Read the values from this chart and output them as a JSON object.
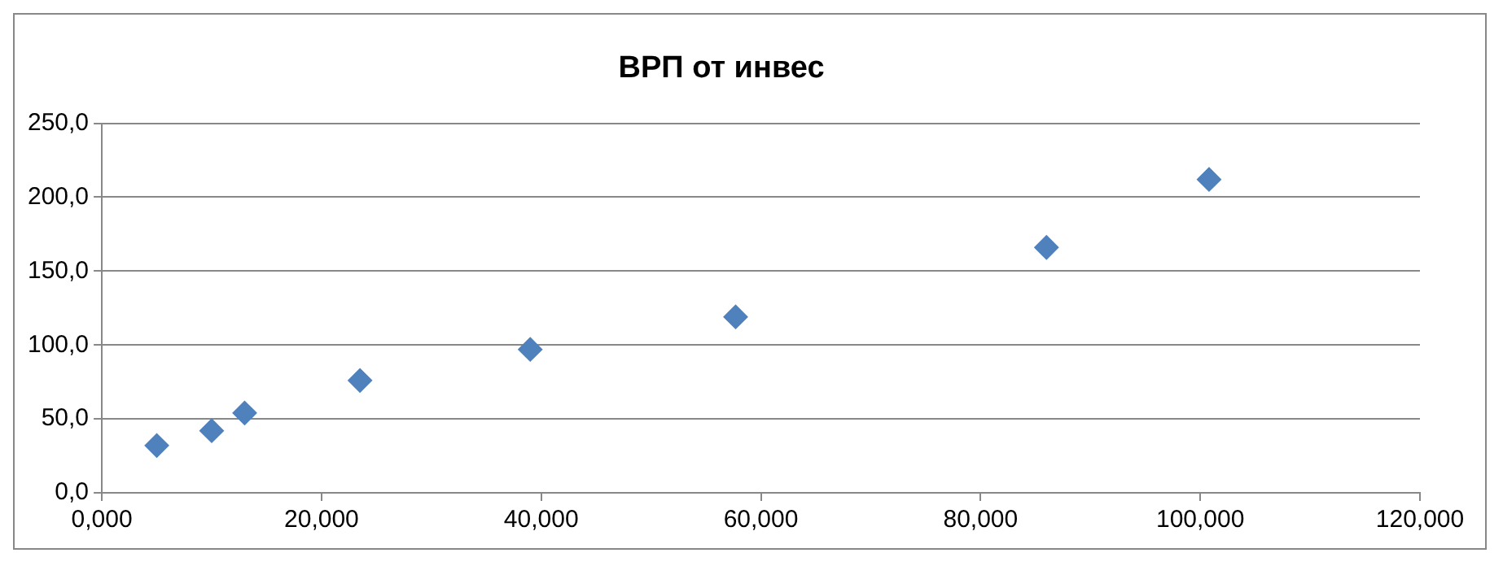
{
  "chart_data": {
    "type": "scatter",
    "title": "ВРП от инвес",
    "x": [
      5,
      10,
      13,
      23.5,
      39,
      57.7,
      86,
      100.8
    ],
    "series": [
      {
        "color": "#4f81bd",
        "values": [
          32,
          42,
          54,
          76,
          97,
          119,
          166,
          212
        ]
      }
    ],
    "xlim": [
      0,
      120
    ],
    "xticks": [
      {
        "value": 0,
        "label": "0,000"
      },
      {
        "value": 20,
        "label": "20,000"
      },
      {
        "value": 40,
        "label": "40,000"
      },
      {
        "value": 60,
        "label": "60,000"
      },
      {
        "value": 80,
        "label": "80,000"
      },
      {
        "value": 100,
        "label": "100,000"
      },
      {
        "value": 120,
        "label": "120,000"
      }
    ],
    "ylim": [
      0,
      250
    ],
    "yticks": [
      {
        "value": 0,
        "label": "0,0"
      },
      {
        "value": 50,
        "label": "50,0"
      },
      {
        "value": 100,
        "label": "100,0"
      },
      {
        "value": 150,
        "label": "150,0"
      },
      {
        "value": 200,
        "label": "200,0"
      },
      {
        "value": 250,
        "label": "250,0"
      }
    ],
    "grid": "y",
    "marker": "diamond",
    "legend": false
  }
}
